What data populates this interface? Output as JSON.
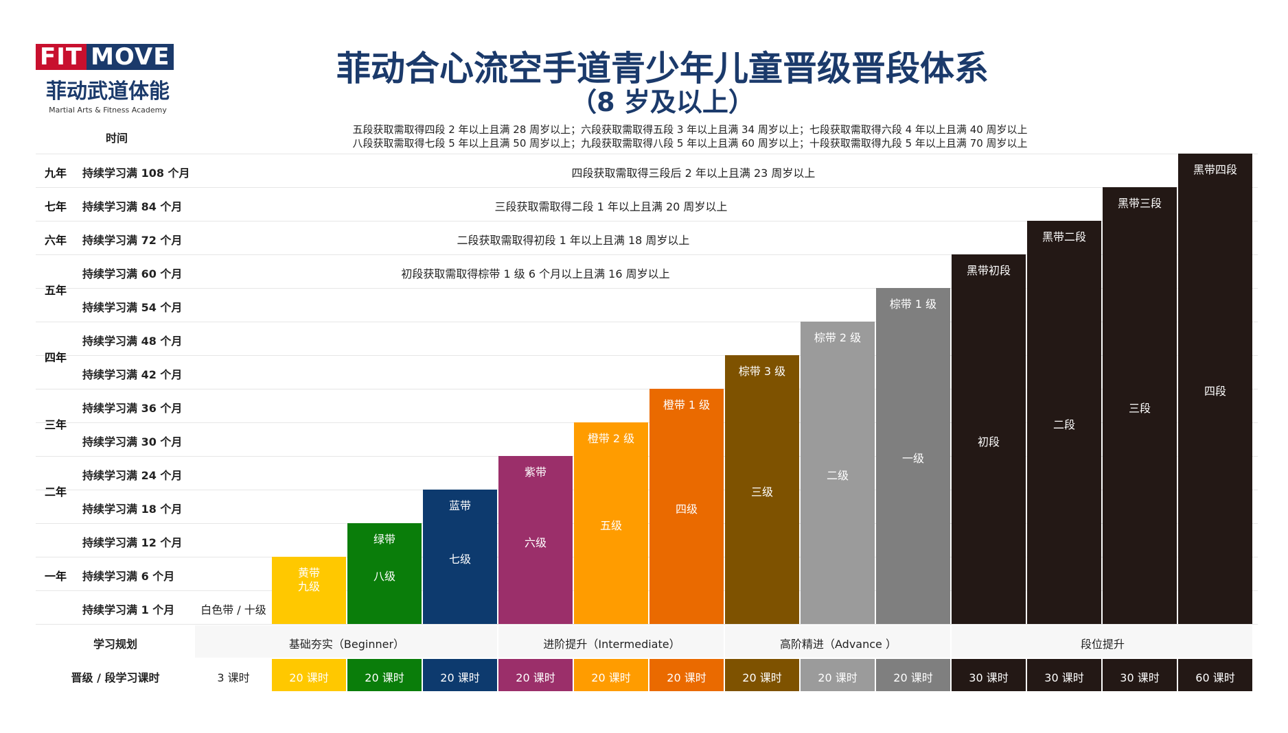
{
  "logo": {
    "fit": "FIT",
    "move": "MOVE",
    "cn": "菲动武道体能",
    "en": "Martial Arts & Fitness Academy"
  },
  "title": "菲动合心流空手道青少年儿童晋级晋段体系",
  "subtitle": "（8 岁及以上）",
  "time_header": "时间",
  "top_notes": [
    "五段获取需取得四段 2 年以上且满 28 周岁以上；六段获取需取得五段 3 年以上且满 34 周岁以上；七段获取需取得六段 4 年以上且满 40 周岁以上",
    "八段获取需取得七段 5 年以上且满 50 周岁以上；九段获取需取得八段 5 年以上且满 60 周岁以上；十段获取需取得九段 5 年以上且满 70 周岁以上"
  ],
  "years": [
    "九年",
    "七年",
    "六年",
    "五年",
    "四年",
    "三年",
    "二年",
    "一年"
  ],
  "rows": [
    "持续学习满 108 个月",
    "持续学习满 84 个月",
    "持续学习满 72 个月",
    "持续学习满 60 个月",
    "持续学习满 54 个月",
    "持续学习满 48 个月",
    "持续学习满 42 个月",
    "持续学习满 36 个月",
    "持续学习满 30 个月",
    "持续学习满 24 个月",
    "持续学习满 18 个月",
    "持续学习满 12 个月",
    "持续学习满 6 个月",
    "持续学习满 1 个月"
  ],
  "dan_notes": [
    "四段获取需取得三段后 2 年以上且满 23 周岁以上",
    "三段获取需取得二段 1 年以上且满 20 周岁以上",
    "二段获取需取得初段 1 年以上且满 18 周岁以上",
    "初段获取需取得棕带 1 级 6 个月以上且满 16 周岁以上"
  ],
  "white_belt": "白色带 / 十级",
  "belts": [
    {
      "top": "黄带",
      "mid": "九级",
      "color": "#ffc800",
      "text": "#ffffff"
    },
    {
      "top": "绿带",
      "mid": "八级",
      "color": "#0a7d0a",
      "text": "#ffffff"
    },
    {
      "top": "蓝带",
      "mid": "七级",
      "color": "#0d3a6e",
      "text": "#ffffff"
    },
    {
      "top": "紫带",
      "mid": "六级",
      "color": "#9b2f6a",
      "text": "#ffffff"
    },
    {
      "top": "橙带 2 级",
      "mid": "五级",
      "color": "#ff9c00",
      "text": "#ffffff"
    },
    {
      "top": "橙带 1 级",
      "mid": "四级",
      "color": "#ea6a00",
      "text": "#ffffff"
    },
    {
      "top": "棕带 3 级",
      "mid": "三级",
      "color": "#7e5200",
      "text": "#ffffff"
    },
    {
      "top": "棕带 2 级",
      "mid": "二级",
      "color": "#9b9b9b",
      "text": "#ffffff"
    },
    {
      "top": "棕带 1 级",
      "mid": "一级",
      "color": "#7f7f7f",
      "text": "#ffffff"
    },
    {
      "top": "黑带初段",
      "mid": "初段",
      "color": "#231815",
      "text": "#ffffff"
    },
    {
      "top": "黑带二段",
      "mid": "二段",
      "color": "#231815",
      "text": "#ffffff"
    },
    {
      "top": "黑带三段",
      "mid": "三段",
      "color": "#231815",
      "text": "#ffffff"
    },
    {
      "top": "黑带四段",
      "mid": "四段",
      "color": "#231815",
      "text": "#ffffff"
    }
  ],
  "plan": {
    "label": "学习规划",
    "stages": [
      "基础夯实（Beginner）",
      "进阶提升（Intermediate）",
      "高阶精进（Advance ）",
      "段位提升"
    ]
  },
  "hours": {
    "label": "晋级 / 段学习课时",
    "white": "3 课时",
    "values": [
      "20 课时",
      "20 课时",
      "20 课时",
      "20 课时",
      "20 课时",
      "20 课时",
      "20 课时",
      "20 课时",
      "20 课时",
      "30 课时",
      "30 课时",
      "30 课时",
      "60 课时"
    ]
  }
}
